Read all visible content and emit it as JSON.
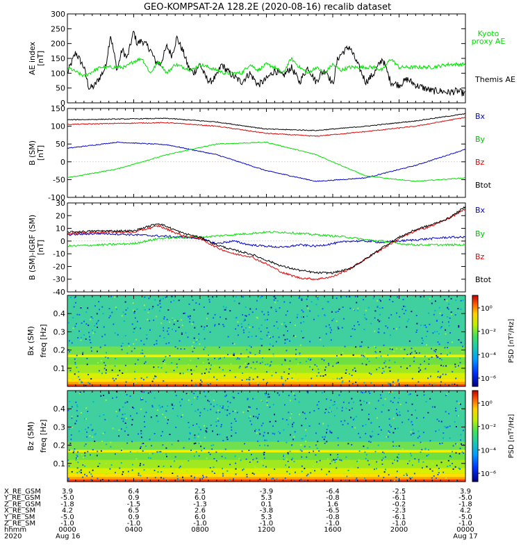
{
  "title": "GEO-KOMPSAT-2A 128.2E (2020-08-16) recalib dataset",
  "colors": {
    "black": "#000000",
    "red": "#e00000",
    "green": "#00e000",
    "blue": "#0000cc",
    "kyoto": "#00e000"
  },
  "chart_data": [
    {
      "panel": "ae_index",
      "type": "line",
      "ylabel": "AE index",
      "yunit": "[nT]",
      "ylim": [
        0,
        300
      ],
      "yticks": [
        0,
        50,
        100,
        150,
        200,
        250,
        300
      ],
      "xlim_hours": [
        0,
        24
      ],
      "series": [
        {
          "name": "Themis AE",
          "color": "#000000",
          "x": [
            0,
            0.5,
            1,
            1.3,
            1.6,
            2,
            2.3,
            2.6,
            3,
            3.3,
            3.6,
            4,
            4.2,
            4.5,
            5,
            5.3,
            5.6,
            6,
            6.3,
            6.6,
            7,
            7.3,
            7.6,
            8,
            8.3,
            8.6,
            9,
            9.3,
            9.6,
            10,
            10.5,
            11,
            11.5,
            12,
            12.5,
            13,
            13.5,
            14,
            14.5,
            15,
            15.3,
            15.6,
            16,
            16.3,
            16.6,
            17,
            17.5,
            18,
            18.5,
            19,
            19.5,
            20,
            20.5,
            21,
            21.5,
            22,
            22.5,
            23,
            23.5,
            24
          ],
          "y": [
            100,
            170,
            120,
            50,
            55,
            90,
            120,
            230,
            110,
            180,
            150,
            240,
            200,
            210,
            180,
            140,
            130,
            190,
            160,
            220,
            170,
            120,
            100,
            130,
            90,
            70,
            90,
            130,
            110,
            90,
            70,
            100,
            60,
            80,
            110,
            90,
            120,
            70,
            120,
            70,
            100,
            110,
            60,
            150,
            170,
            190,
            130,
            70,
            100,
            150,
            70,
            60,
            80,
            60,
            50,
            40,
            40,
            35,
            40,
            30
          ]
        },
        {
          "name": "Kyoto proxy AE",
          "color": "#00e000",
          "x": [
            0,
            1,
            2,
            2.5,
            3,
            3.5,
            4,
            4.5,
            5,
            5.5,
            6,
            6.5,
            7,
            7.5,
            8,
            8.5,
            9,
            9.5,
            10,
            10.5,
            11,
            11.5,
            12,
            12.5,
            13,
            13.5,
            14,
            14.5,
            15,
            15.5,
            16,
            16.5,
            17,
            17.5,
            18,
            18.5,
            19,
            19.5,
            20,
            20.5,
            21,
            22,
            23,
            24
          ],
          "y": [
            120,
            90,
            120,
            120,
            120,
            120,
            140,
            150,
            100,
            140,
            100,
            130,
            120,
            110,
            130,
            120,
            110,
            100,
            100,
            100,
            130,
            110,
            130,
            120,
            100,
            150,
            120,
            100,
            120,
            100,
            130,
            110,
            120,
            120,
            120,
            120,
            110,
            150,
            120,
            120,
            120,
            120,
            130,
            130
          ]
        }
      ]
    },
    {
      "panel": "b_sm",
      "type": "line",
      "ylabel": "B (SM)",
      "yunit": "[nT]",
      "ylim": [
        -100,
        150
      ],
      "yticks": [
        -100,
        -50,
        0,
        50,
        100,
        150
      ],
      "xlim_hours": [
        0,
        24
      ],
      "series": [
        {
          "name": "Bx",
          "color": "#0000cc",
          "x": [
            0,
            3,
            6,
            9,
            12,
            15,
            18,
            21,
            24
          ],
          "y": [
            38,
            55,
            48,
            20,
            -25,
            -55,
            -45,
            -10,
            35
          ]
        },
        {
          "name": "By",
          "color": "#00e000",
          "x": [
            0,
            3,
            6,
            9,
            12,
            15,
            18,
            21,
            24
          ],
          "y": [
            -45,
            -20,
            20,
            50,
            55,
            20,
            -40,
            -55,
            -45
          ]
        },
        {
          "name": "Bz",
          "color": "#e00000",
          "x": [
            0,
            3,
            6,
            9,
            12,
            15,
            18,
            21,
            24
          ],
          "y": [
            105,
            108,
            110,
            100,
            80,
            72,
            85,
            100,
            125
          ]
        },
        {
          "name": "Btot",
          "color": "#000000",
          "x": [
            0,
            3,
            6,
            9,
            12,
            15,
            18,
            21,
            24
          ],
          "y": [
            118,
            120,
            122,
            112,
            92,
            88,
            100,
            115,
            135
          ]
        }
      ]
    },
    {
      "panel": "b_minus_igrf",
      "type": "line",
      "ylabel": "B (SM)-IGRF (SM)",
      "yunit": "[nT]",
      "ylim": [
        -40,
        30
      ],
      "yticks": [
        -40,
        -30,
        -20,
        -10,
        0,
        10,
        20,
        30
      ],
      "xlim_hours": [
        0,
        24
      ],
      "series": [
        {
          "name": "Bx",
          "color": "#0000cc",
          "x": [
            0,
            2,
            4,
            5.5,
            7,
            8,
            9,
            10,
            11,
            12,
            13,
            14,
            15,
            16,
            17,
            18,
            19,
            20,
            21,
            22,
            23,
            24
          ],
          "y": [
            5,
            6,
            5,
            4,
            3,
            2,
            -2,
            0,
            -3,
            -4,
            -5,
            -3,
            -4,
            -2,
            0,
            0,
            -1,
            0,
            1,
            2,
            3,
            3
          ]
        },
        {
          "name": "By",
          "color": "#00e000",
          "x": [
            0,
            2,
            4,
            5.5,
            7,
            8,
            9,
            10,
            11,
            12,
            13,
            14,
            15,
            16,
            17,
            18,
            19,
            20,
            21,
            22,
            23,
            24
          ],
          "y": [
            -4,
            -3,
            -2,
            2,
            3,
            3,
            4,
            5,
            6,
            7,
            7,
            6,
            5,
            4,
            3,
            1,
            0,
            -2,
            -3,
            -3,
            -3,
            -3
          ]
        },
        {
          "name": "Bz",
          "color": "#e00000",
          "x": [
            0,
            2,
            4,
            5.5,
            7,
            8,
            9,
            10,
            11,
            12,
            13,
            14,
            15,
            16,
            17,
            18,
            19,
            20,
            21,
            22,
            23,
            24
          ],
          "y": [
            6,
            7,
            7,
            12,
            4,
            2,
            -5,
            -10,
            -12,
            -18,
            -25,
            -29,
            -30,
            -28,
            -22,
            -14,
            -6,
            2,
            8,
            12,
            18,
            25
          ]
        },
        {
          "name": "Btot",
          "color": "#000000",
          "x": [
            0,
            2,
            4,
            5.5,
            7,
            8,
            9,
            10,
            11,
            12,
            13,
            14,
            15,
            16,
            17,
            18,
            19,
            20,
            21,
            22,
            23,
            24
          ],
          "y": [
            7,
            8,
            8,
            14,
            6,
            3,
            -3,
            -7,
            -10,
            -15,
            -20,
            -23,
            -25,
            -25,
            -22,
            -14,
            -5,
            3,
            9,
            13,
            18,
            27
          ]
        }
      ]
    },
    {
      "panel": "bx_spectrogram",
      "type": "heatmap",
      "ylabel": "Bx (SM)",
      "yaxis": "freq [Hz]",
      "ylim": [
        0,
        0.5
      ],
      "yticks": [
        0.1,
        0.2,
        0.3,
        0.4
      ],
      "ytick_labels": [
        "0.1",
        "0.2",
        "0.3",
        "0.4"
      ],
      "colorbar_label": "PSD [nT²/Hz]",
      "colorbar_ticks": [
        "10⁰",
        "10⁻²",
        "10⁻⁴",
        "10⁻⁶"
      ],
      "xlim_hours": [
        0,
        24
      ]
    },
    {
      "panel": "bz_spectrogram",
      "type": "heatmap",
      "ylabel": "Bz (SM)",
      "yaxis": "freq [Hz]",
      "ylim": [
        0,
        0.5
      ],
      "yticks": [
        0.1,
        0.2,
        0.3,
        0.4
      ],
      "ytick_labels": [
        "0.1",
        "0.2",
        "0.3",
        "0.4"
      ],
      "colorbar_label": "PSD [nT²/Hz]",
      "colorbar_ticks": [
        "10⁰",
        "10⁻²",
        "10⁻⁴",
        "10⁻⁶"
      ],
      "xlim_hours": [
        0,
        24
      ]
    }
  ],
  "legends": {
    "ae": [
      "Kyoto",
      "proxy AE",
      "Themis AE"
    ],
    "b_sm": [
      "Bx",
      "By",
      "Bz",
      "Btot"
    ],
    "b_igrf": [
      "Bx",
      "By",
      "Bz",
      "Btot"
    ]
  },
  "ephemeris": {
    "row_labels": [
      "X_RE_GSM",
      "Y_RE_GSM",
      "Z_RE_GSM",
      "X_RE_SM",
      "Y_RE_SM",
      "Z_RE_SM",
      "hhmm",
      "2020"
    ],
    "columns": [
      [
        "3.9",
        "-5.0",
        "-1.8",
        "4.2",
        "-5.0",
        "-1.0",
        "0000",
        "Aug 16"
      ],
      [
        "6.4",
        "0.9",
        "-1.5",
        "6.5",
        "0.9",
        "-1.0",
        "0400",
        ""
      ],
      [
        "2.5",
        "6.0",
        "-1.3",
        "2.6",
        "6.0",
        "-1.0",
        "0800",
        ""
      ],
      [
        "-3.9",
        "5.3",
        "0.1",
        "-3.8",
        "5.3",
        "-1.0",
        "1200",
        ""
      ],
      [
        "-6.4",
        "-0.8",
        "1.6",
        "-6.5",
        "-0.8",
        "-1.0",
        "1600",
        ""
      ],
      [
        "-2.5",
        "-6.1",
        "-0.2",
        "-2.3",
        "-6.1",
        "-1.0",
        "2000",
        ""
      ],
      [
        "3.9",
        "-5.0",
        "-1.8",
        "4.2",
        "-5.0",
        "-1.0",
        "0000",
        "Aug 17"
      ]
    ]
  }
}
